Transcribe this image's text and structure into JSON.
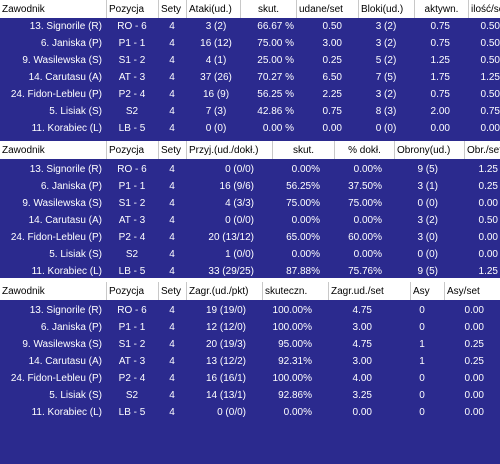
{
  "table1": {
    "headers": [
      "Zawodnik",
      "Pozycja",
      "Sety",
      "Ataki(ud.)",
      "skut.",
      "udane/set",
      "Bloki(ud.)",
      "aktywn.",
      "ilość/set"
    ],
    "rows": [
      [
        "13. Signorile (R)",
        "RO - 6",
        "4",
        "3 (2)",
        "66.67 %",
        "0.50",
        "3 (2)",
        "0.75",
        "0.50"
      ],
      [
        "6. Janiska (P)",
        "P1 - 1",
        "4",
        "16 (12)",
        "75.00 %",
        "3.00",
        "3 (2)",
        "0.75",
        "0.50"
      ],
      [
        "9. Wasilewska (S)",
        "S1 - 2",
        "4",
        "4 (1)",
        "25.00 %",
        "0.25",
        "5 (2)",
        "1.25",
        "0.50"
      ],
      [
        "14. Carutasu (A)",
        "AT - 3",
        "4",
        "37 (26)",
        "70.27 %",
        "6.50",
        "7 (5)",
        "1.75",
        "1.25"
      ],
      [
        "24. Fidon-Lebleu (P)",
        "P2 - 4",
        "4",
        "16 (9)",
        "56.25 %",
        "2.25",
        "3 (2)",
        "0.75",
        "0.50"
      ],
      [
        "5. Lisiak (S)",
        "S2",
        "4",
        "7 (3)",
        "42.86 %",
        "0.75",
        "8 (3)",
        "2.00",
        "0.75"
      ],
      [
        "11. Korabiec (L)",
        "LB - 5",
        "4",
        "0 (0)",
        "0.00 %",
        "0.00",
        "0 (0)",
        "0.00",
        "0.00"
      ]
    ]
  },
  "table2": {
    "headers": [
      "Zawodnik",
      "Pozycja",
      "Sety",
      "Przyj.(ud./dokł.)",
      "skut.",
      "% dokł.",
      "Obrony(ud.)",
      "Obr./set"
    ],
    "rows": [
      [
        "13. Signorile (R)",
        "RO - 6",
        "4",
        "0 (0/0)",
        "0.00%",
        "0.00%",
        "9 (5)",
        "1.25"
      ],
      [
        "6. Janiska (P)",
        "P1 - 1",
        "4",
        "16 (9/6)",
        "56.25%",
        "37.50%",
        "3 (1)",
        "0.25"
      ],
      [
        "9. Wasilewska (S)",
        "S1 - 2",
        "4",
        "4 (3/3)",
        "75.00%",
        "75.00%",
        "0 (0)",
        "0.00"
      ],
      [
        "14. Carutasu (A)",
        "AT - 3",
        "4",
        "0 (0/0)",
        "0.00%",
        "0.00%",
        "3 (2)",
        "0.50"
      ],
      [
        "24. Fidon-Lebleu (P)",
        "P2 - 4",
        "4",
        "20 (13/12)",
        "65.00%",
        "60.00%",
        "3 (0)",
        "0.00"
      ],
      [
        "5. Lisiak (S)",
        "S2",
        "4",
        "1 (0/0)",
        "0.00%",
        "0.00%",
        "0 (0)",
        "0.00"
      ],
      [
        "11. Korabiec (L)",
        "LB - 5",
        "4",
        "33 (29/25)",
        "87.88%",
        "75.76%",
        "9 (5)",
        "1.25"
      ]
    ]
  },
  "table3": {
    "headers": [
      "Zawodnik",
      "Pozycja",
      "Sety",
      "Zagr.(ud./pkt)",
      "skuteczn.",
      "Zagr.ud./set",
      "Asy",
      "Asy/set"
    ],
    "rows": [
      [
        "13. Signorile (R)",
        "RO - 6",
        "4",
        "19 (19/0)",
        "100.00%",
        "4.75",
        "0",
        "0.00"
      ],
      [
        "6. Janiska (P)",
        "P1 - 1",
        "4",
        "12 (12/0)",
        "100.00%",
        "3.00",
        "0",
        "0.00"
      ],
      [
        "9. Wasilewska (S)",
        "S1 - 2",
        "4",
        "20 (19/3)",
        "95.00%",
        "4.75",
        "1",
        "0.25"
      ],
      [
        "14. Carutasu (A)",
        "AT - 3",
        "4",
        "13 (12/2)",
        "92.31%",
        "3.00",
        "1",
        "0.25"
      ],
      [
        "24. Fidon-Lebleu (P)",
        "P2 - 4",
        "4",
        "16 (16/1)",
        "100.00%",
        "4.00",
        "0",
        "0.00"
      ],
      [
        "5. Lisiak (S)",
        "S2",
        "4",
        "14 (13/1)",
        "92.86%",
        "3.25",
        "0",
        "0.00"
      ],
      [
        "11. Korabiec (L)",
        "LB - 5",
        "4",
        "0 (0/0)",
        "0.00%",
        "0.00",
        "0",
        "0.00"
      ]
    ]
  }
}
